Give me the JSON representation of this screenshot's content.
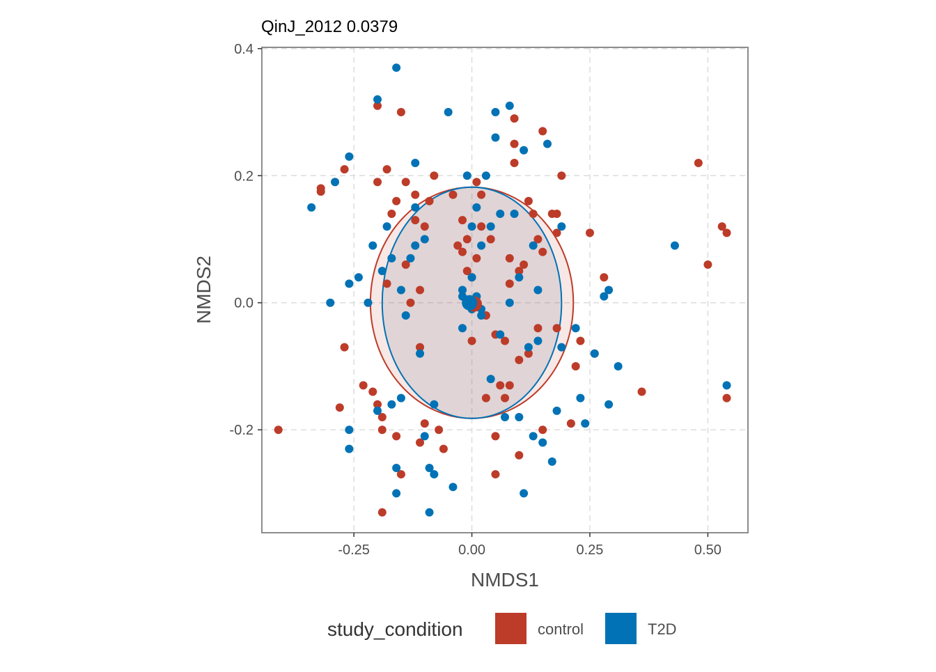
{
  "chart_data": {
    "type": "scatter",
    "title": "QinJ_2012 0.0379",
    "xlabel": "NMDS1",
    "ylabel": "NMDS2",
    "xlim": [
      -0.445,
      0.585
    ],
    "ylim": [
      -0.362,
      0.402
    ],
    "x_ticks": [
      -0.25,
      0.0,
      0.25,
      0.5
    ],
    "x_tick_labels": [
      "-0.25",
      "0.00",
      "0.25",
      "0.50"
    ],
    "y_ticks": [
      -0.2,
      0.0,
      0.2,
      0.4
    ],
    "y_tick_labels": [
      "-0.2",
      "0.0",
      "0.2",
      "0.4"
    ],
    "grid": true,
    "legend": {
      "title": "study_condition",
      "position": "bottom",
      "items": [
        {
          "label": "control",
          "color": "#BC3C29"
        },
        {
          "label": "T2D",
          "color": "#0072B5"
        }
      ]
    },
    "series": [
      {
        "name": "control",
        "color": "#BC3C29",
        "centroid": [
          0.005,
          -0.002
        ],
        "ellipse": {
          "cx": 0.0,
          "cy": 0.0,
          "rx": 0.215,
          "ry": 0.182
        },
        "points": [
          [
            -0.41,
            -0.2
          ],
          [
            -0.27,
            0.21
          ],
          [
            -0.32,
            0.18
          ],
          [
            -0.32,
            0.175
          ],
          [
            -0.27,
            -0.07
          ],
          [
            -0.28,
            -0.165
          ],
          [
            -0.23,
            -0.13
          ],
          [
            -0.21,
            -0.14
          ],
          [
            -0.2,
            0.19
          ],
          [
            -0.2,
            0.31
          ],
          [
            -0.2,
            -0.16
          ],
          [
            -0.19,
            -0.18
          ],
          [
            -0.19,
            -0.2
          ],
          [
            -0.19,
            -0.33
          ],
          [
            -0.18,
            0.21
          ],
          [
            -0.18,
            0.03
          ],
          [
            -0.17,
            0.14
          ],
          [
            -0.16,
            0.16
          ],
          [
            -0.16,
            -0.21
          ],
          [
            -0.15,
            -0.27
          ],
          [
            -0.15,
            0.3
          ],
          [
            -0.14,
            0.19
          ],
          [
            -0.14,
            0.06
          ],
          [
            -0.13,
            0.0
          ],
          [
            -0.12,
            0.17
          ],
          [
            -0.12,
            0.13
          ],
          [
            -0.11,
            0.02
          ],
          [
            -0.11,
            -0.07
          ],
          [
            -0.11,
            -0.22
          ],
          [
            -0.1,
            -0.19
          ],
          [
            -0.1,
            0.12
          ],
          [
            -0.09,
            0.16
          ],
          [
            -0.08,
            0.2
          ],
          [
            -0.07,
            -0.2
          ],
          [
            -0.06,
            -0.23
          ],
          [
            -0.04,
            0.17
          ],
          [
            -0.03,
            0.09
          ],
          [
            -0.02,
            0.13
          ],
          [
            -0.02,
            0.08
          ],
          [
            -0.01,
            0.1
          ],
          [
            -0.01,
            0.05
          ],
          [
            0.0,
            0.04
          ],
          [
            0.0,
            -0.01
          ],
          [
            0.0,
            -0.06
          ],
          [
            0.01,
            0.07
          ],
          [
            0.01,
            0.19
          ],
          [
            0.02,
            0.12
          ],
          [
            0.02,
            0.17
          ],
          [
            0.03,
            -0.02
          ],
          [
            0.03,
            -0.15
          ],
          [
            0.04,
            0.1
          ],
          [
            0.05,
            -0.05
          ],
          [
            0.05,
            -0.21
          ],
          [
            0.05,
            -0.27
          ],
          [
            0.06,
            -0.13
          ],
          [
            0.07,
            -0.15
          ],
          [
            0.07,
            -0.06
          ],
          [
            0.08,
            0.07
          ],
          [
            0.08,
            -0.13
          ],
          [
            0.08,
            0.03
          ],
          [
            0.09,
            0.25
          ],
          [
            0.09,
            0.22
          ],
          [
            0.09,
            0.29
          ],
          [
            0.1,
            -0.09
          ],
          [
            0.1,
            -0.24
          ],
          [
            0.1,
            0.05
          ],
          [
            0.11,
            0.06
          ],
          [
            0.12,
            0.16
          ],
          [
            0.12,
            -0.08
          ],
          [
            0.13,
            0.14
          ],
          [
            0.14,
            -0.04
          ],
          [
            0.14,
            0.1
          ],
          [
            0.15,
            0.08
          ],
          [
            0.15,
            0.27
          ],
          [
            0.15,
            -0.2
          ],
          [
            0.17,
            0.14
          ],
          [
            0.18,
            0.14
          ],
          [
            0.18,
            0.11
          ],
          [
            0.18,
            -0.04
          ],
          [
            0.19,
            0.2
          ],
          [
            0.21,
            -0.19
          ],
          [
            0.22,
            -0.1
          ],
          [
            0.23,
            -0.06
          ],
          [
            0.25,
            0.11
          ],
          [
            0.26,
            -0.08
          ],
          [
            0.28,
            0.04
          ],
          [
            0.36,
            -0.14
          ],
          [
            0.48,
            0.22
          ],
          [
            0.5,
            0.06
          ],
          [
            0.53,
            0.12
          ],
          [
            0.54,
            0.11
          ],
          [
            0.54,
            -0.15
          ],
          [
            0.0,
            0.0
          ]
        ]
      },
      {
        "name": "T2D",
        "color": "#0072B5",
        "centroid": [
          -0.005,
          0.0
        ],
        "ellipse": {
          "cx": 0.0,
          "cy": 0.0,
          "rx": 0.19,
          "ry": 0.182
        },
        "points": [
          [
            -0.34,
            0.15
          ],
          [
            -0.3,
            -0.0
          ],
          [
            -0.29,
            0.19
          ],
          [
            -0.26,
            0.23
          ],
          [
            -0.26,
            -0.23
          ],
          [
            -0.26,
            -0.2
          ],
          [
            -0.26,
            0.03
          ],
          [
            -0.24,
            0.04
          ],
          [
            -0.22,
            0.0
          ],
          [
            -0.21,
            0.09
          ],
          [
            -0.2,
            0.32
          ],
          [
            -0.2,
            -0.17
          ],
          [
            -0.19,
            0.05
          ],
          [
            -0.18,
            0.12
          ],
          [
            -0.17,
            -0.16
          ],
          [
            -0.17,
            0.07
          ],
          [
            -0.16,
            0.37
          ],
          [
            -0.16,
            -0.3
          ],
          [
            -0.16,
            -0.26
          ],
          [
            -0.15,
            -0.15
          ],
          [
            -0.15,
            0.02
          ],
          [
            -0.14,
            -0.02
          ],
          [
            -0.13,
            0.07
          ],
          [
            -0.12,
            0.22
          ],
          [
            -0.12,
            0.15
          ],
          [
            -0.12,
            0.09
          ],
          [
            -0.11,
            -0.08
          ],
          [
            -0.1,
            0.1
          ],
          [
            -0.1,
            -0.21
          ],
          [
            -0.09,
            -0.33
          ],
          [
            -0.09,
            -0.26
          ],
          [
            -0.08,
            -0.27
          ],
          [
            -0.08,
            -0.16
          ],
          [
            -0.05,
            0.3
          ],
          [
            -0.04,
            -0.29
          ],
          [
            -0.02,
            -0.04
          ],
          [
            -0.02,
            0.02
          ],
          [
            -0.01,
            0.2
          ],
          [
            0.0,
            0.04
          ],
          [
            0.0,
            0.12
          ],
          [
            0.01,
            0.0
          ],
          [
            0.01,
            0.15
          ],
          [
            0.02,
            -0.02
          ],
          [
            0.02,
            0.09
          ],
          [
            0.03,
            0.2
          ],
          [
            0.04,
            0.12
          ],
          [
            0.04,
            -0.12
          ],
          [
            0.05,
            0.26
          ],
          [
            0.05,
            0.3
          ],
          [
            0.06,
            -0.05
          ],
          [
            0.06,
            0.14
          ],
          [
            0.07,
            -0.18
          ],
          [
            0.08,
            0.31
          ],
          [
            0.08,
            0.0
          ],
          [
            0.09,
            0.14
          ],
          [
            0.1,
            0.04
          ],
          [
            0.1,
            -0.18
          ],
          [
            0.11,
            -0.3
          ],
          [
            0.11,
            0.24
          ],
          [
            0.12,
            -0.07
          ],
          [
            0.13,
            0.09
          ],
          [
            0.13,
            -0.21
          ],
          [
            0.14,
            -0.06
          ],
          [
            0.14,
            0.02
          ],
          [
            0.15,
            -0.22
          ],
          [
            0.16,
            0.25
          ],
          [
            0.17,
            -0.25
          ],
          [
            0.18,
            -0.17
          ],
          [
            0.19,
            -0.07
          ],
          [
            0.19,
            0.12
          ],
          [
            0.22,
            -0.04
          ],
          [
            0.23,
            -0.15
          ],
          [
            0.24,
            -0.19
          ],
          [
            0.26,
            -0.08
          ],
          [
            0.28,
            0.01
          ],
          [
            0.29,
            -0.16
          ],
          [
            0.29,
            0.02
          ],
          [
            0.31,
            -0.1
          ],
          [
            0.43,
            0.09
          ],
          [
            0.54,
            -0.13
          ],
          [
            -0.01,
            0.0
          ],
          [
            0.0,
            -0.01
          ],
          [
            0.01,
            0.01
          ],
          [
            -0.02,
            0.01
          ],
          [
            0.02,
            -0.01
          ]
        ]
      }
    ]
  }
}
